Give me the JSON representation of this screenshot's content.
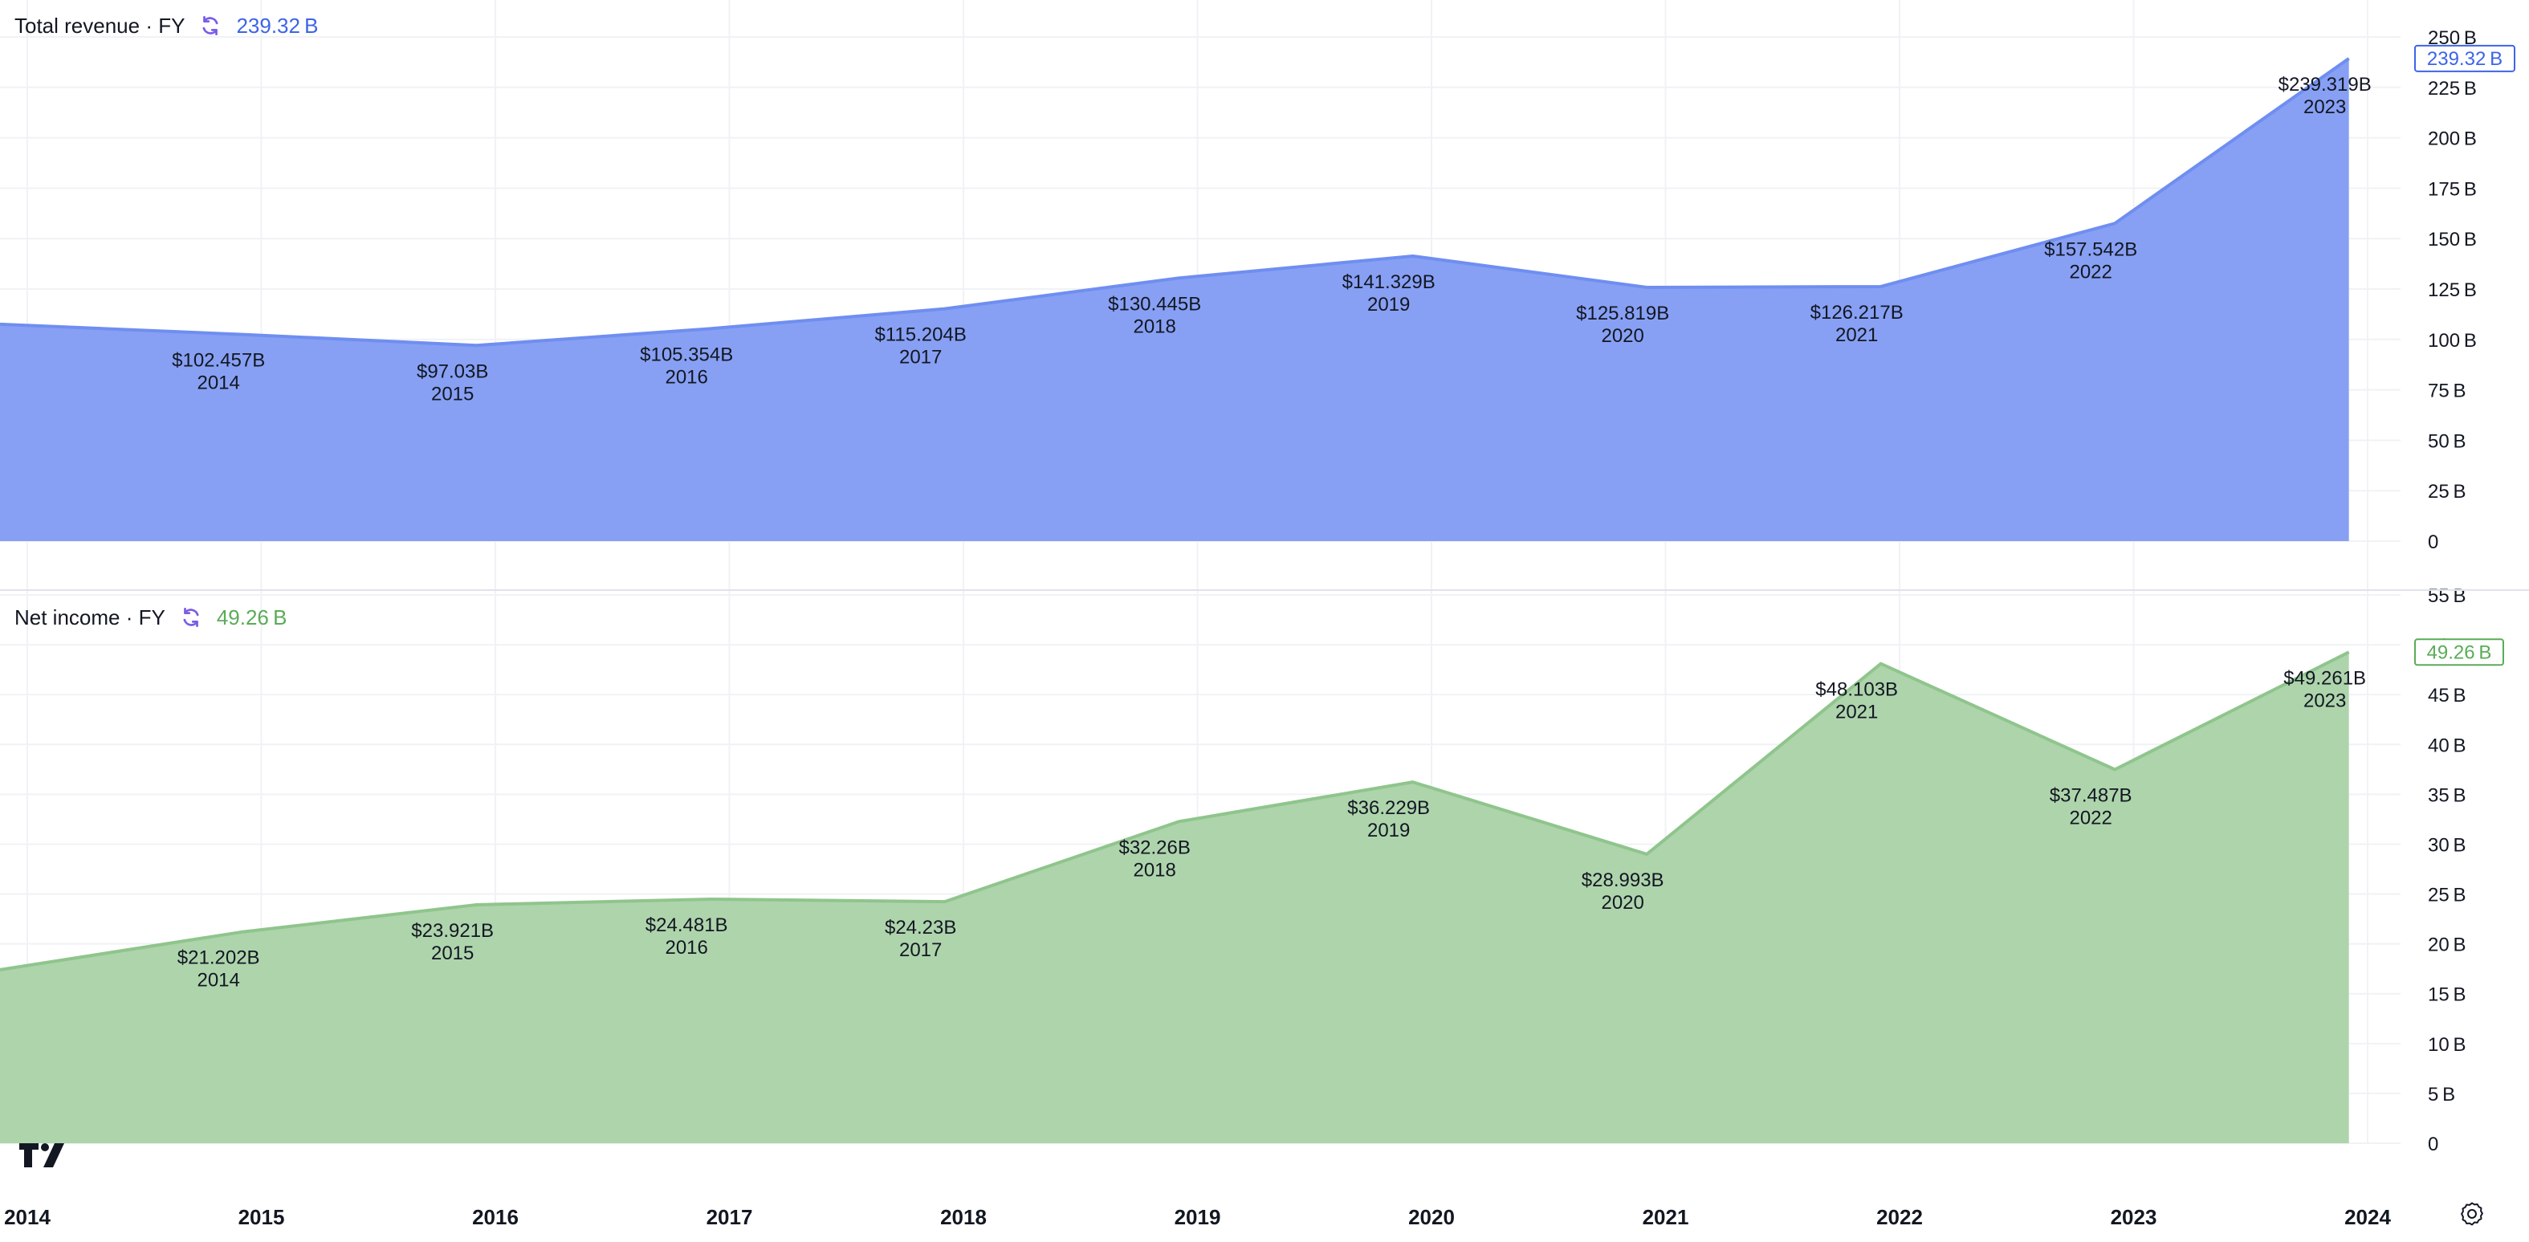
{
  "colors": {
    "revenue_fill": "#87a0f4",
    "revenue_line": "#6f8ef0",
    "revenue_text": "#3d64e8",
    "income_fill": "#aed4ac",
    "income_line": "#8fc58c",
    "income_text": "#5aac57",
    "grid": "#f0f2f5",
    "text": "#131722",
    "sync_icon": "#7b5ce8"
  },
  "panes": [
    {
      "title": "Total revenue · FY",
      "value": "239.32 B",
      "icon": "sync-icon"
    },
    {
      "title": "Net income · FY",
      "value": "49.26 B",
      "icon": "sync-icon"
    }
  ],
  "x_axis": {
    "ticks": [
      "2014",
      "2015",
      "2016",
      "2017",
      "2018",
      "2019",
      "2020",
      "2021",
      "2022",
      "2023",
      "2024"
    ]
  },
  "chart_data": [
    {
      "type": "area",
      "title": "Total revenue · FY",
      "x": [
        "2013",
        "2014",
        "2015",
        "2016",
        "2017",
        "2018",
        "2019",
        "2020",
        "2021",
        "2022",
        "2023"
      ],
      "values": [
        107.552,
        102.457,
        97.03,
        105.354,
        115.204,
        130.445,
        141.329,
        125.819,
        126.217,
        157.542,
        239.319
      ],
      "labels": [
        "$102.457B",
        "$97.03B",
        "$105.354B",
        "$115.204B",
        "$130.445B",
        "$141.329B",
        "$125.819B",
        "$126.217B",
        "$157.542B",
        "$239.319B"
      ],
      "label_years": [
        "2014",
        "2015",
        "2016",
        "2017",
        "2018",
        "2019",
        "2020",
        "2021",
        "2022",
        "2023"
      ],
      "last_value_label": "239.32 B",
      "y_ticks": [
        "0",
        "25 B",
        "50 B",
        "75 B",
        "100 B",
        "125 B",
        "150 B",
        "175 B",
        "200 B",
        "225 B",
        "250 B"
      ],
      "ylim": [
        0,
        250
      ],
      "grid": true
    },
    {
      "type": "area",
      "title": "Net income · FY",
      "x": [
        "2013",
        "2014",
        "2015",
        "2016",
        "2017",
        "2018",
        "2019",
        "2020",
        "2021",
        "2022",
        "2023"
      ],
      "values": [
        17.4,
        21.202,
        23.921,
        24.481,
        24.23,
        32.26,
        36.229,
        28.993,
        48.103,
        37.487,
        49.261
      ],
      "labels": [
        "$21.202B",
        "$23.921B",
        "$24.481B",
        "$24.23B",
        "$32.26B",
        "$36.229B",
        "$28.993B",
        "$48.103B",
        "$37.487B",
        "$49.261B"
      ],
      "label_years": [
        "2014",
        "2015",
        "2016",
        "2017",
        "2018",
        "2019",
        "2020",
        "2021",
        "2022",
        "2023"
      ],
      "last_value_label": "49.26 B",
      "y_ticks": [
        "0",
        "5 B",
        "10 B",
        "15 B",
        "20 B",
        "25 B",
        "30 B",
        "35 B",
        "40 B",
        "45 B",
        "50 B",
        "55 B"
      ],
      "ylim": [
        0,
        55
      ],
      "grid": true
    }
  ]
}
